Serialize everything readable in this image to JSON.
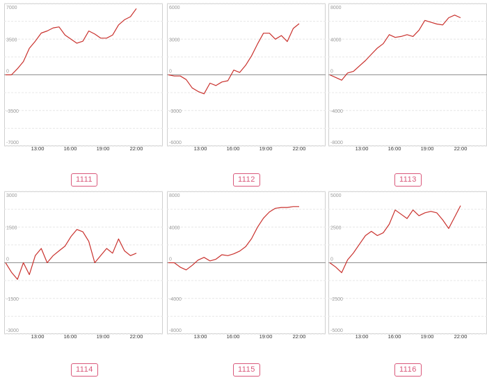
{
  "chart_data": [
    {
      "type": "line",
      "id": "1111",
      "yticks": [
        7000,
        3500,
        0,
        -3500,
        -7000
      ],
      "ylim": [
        -7000,
        7000
      ],
      "xticks": [
        "13:00",
        "16:00",
        "19:00",
        "22:00"
      ],
      "grid": true,
      "line_color": "#c9302c",
      "x": [
        "11:00",
        "11:30",
        "12:00",
        "12:30",
        "13:00",
        "13:30",
        "14:00",
        "14:30",
        "15:00",
        "15:30",
        "16:00",
        "16:30",
        "17:00",
        "17:30",
        "18:00",
        "18:30",
        "19:00",
        "19:30",
        "20:00",
        "20:30",
        "21:00",
        "21:30",
        "22:00"
      ],
      "values": [
        0,
        0,
        600,
        1300,
        2600,
        3300,
        4100,
        4300,
        4600,
        4700,
        3900,
        3500,
        3100,
        3300,
        4300,
        4000,
        3600,
        3600,
        3900,
        4900,
        5400,
        5700,
        6500
      ]
    },
    {
      "type": "line",
      "id": "1112",
      "yticks": [
        6000,
        3000,
        0,
        -3000,
        -6000
      ],
      "ylim": [
        -6000,
        6000
      ],
      "xticks": [
        "13:00",
        "16:00",
        "19:00",
        "22:00"
      ],
      "grid": true,
      "line_color": "#c9302c",
      "x": [
        "11:00",
        "11:30",
        "12:00",
        "12:30",
        "13:00",
        "13:30",
        "14:00",
        "14:30",
        "15:00",
        "15:30",
        "16:00",
        "16:30",
        "17:00",
        "17:30",
        "18:00",
        "18:30",
        "19:00",
        "19:30",
        "20:00",
        "20:30",
        "21:00",
        "21:30",
        "22:00"
      ],
      "values": [
        0,
        -100,
        -100,
        -400,
        -1100,
        -1400,
        -1600,
        -700,
        -900,
        -600,
        -500,
        400,
        200,
        800,
        1600,
        2600,
        3500,
        3500,
        3000,
        3300,
        2800,
        3900,
        4300
      ]
    },
    {
      "type": "line",
      "id": "1113",
      "yticks": [
        8000,
        4000,
        0,
        -4000,
        -8000
      ],
      "ylim": [
        -8000,
        8000
      ],
      "xticks": [
        "13:00",
        "16:00",
        "19:00",
        "22:00"
      ],
      "grid": true,
      "line_color": "#c9302c",
      "x": [
        "11:00",
        "11:30",
        "12:00",
        "12:30",
        "13:00",
        "13:30",
        "14:00",
        "14:30",
        "15:00",
        "15:30",
        "16:00",
        "16:30",
        "17:00",
        "17:30",
        "18:00",
        "18:30",
        "19:00",
        "19:30",
        "20:00",
        "20:30",
        "21:00",
        "21:30",
        "22:00"
      ],
      "values": [
        0,
        -300,
        -600,
        200,
        400,
        1000,
        1600,
        2300,
        3000,
        3500,
        4500,
        4200,
        4300,
        4500,
        4300,
        5000,
        6100,
        5900,
        5700,
        5600,
        6400,
        6700,
        6400
      ]
    },
    {
      "type": "line",
      "id": "1114",
      "yticks": [
        3000,
        1500,
        0,
        -1500,
        -3000
      ],
      "ylim": [
        -3000,
        3000
      ],
      "xticks": [
        "13:00",
        "16:00",
        "19:00",
        "22:00"
      ],
      "grid": true,
      "line_color": "#c9302c",
      "x": [
        "11:00",
        "11:30",
        "12:00",
        "12:30",
        "13:00",
        "13:30",
        "14:00",
        "14:30",
        "15:00",
        "15:30",
        "16:00",
        "16:30",
        "17:00",
        "17:30",
        "18:00",
        "18:30",
        "19:00",
        "19:30",
        "20:00",
        "20:30",
        "21:00",
        "21:30",
        "22:00"
      ],
      "values": [
        0,
        -400,
        -700,
        0,
        -500,
        300,
        600,
        0,
        300,
        500,
        700,
        1100,
        1400,
        1300,
        900,
        0,
        300,
        600,
        400,
        1000,
        500,
        300,
        400
      ]
    },
    {
      "type": "line",
      "id": "1115",
      "yticks": [
        8000,
        4000,
        0,
        -4000,
        -8000
      ],
      "ylim": [
        -8000,
        8000
      ],
      "xticks": [
        "13:00",
        "16:00",
        "19:00",
        "22:00"
      ],
      "grid": true,
      "line_color": "#c9302c",
      "x": [
        "11:00",
        "11:30",
        "12:00",
        "12:30",
        "13:00",
        "13:30",
        "14:00",
        "14:30",
        "15:00",
        "15:30",
        "16:00",
        "16:30",
        "17:00",
        "17:30",
        "18:00",
        "18:30",
        "19:00",
        "19:30",
        "20:00",
        "20:30",
        "21:00",
        "21:30",
        "22:00"
      ],
      "values": [
        0,
        0,
        -500,
        -800,
        -300,
        300,
        600,
        200,
        400,
        900,
        800,
        1000,
        1300,
        1800,
        2700,
        4000,
        5000,
        5700,
        6100,
        6200,
        6200,
        6300,
        6300
      ]
    },
    {
      "type": "line",
      "id": "1116",
      "yticks": [
        5000,
        2500,
        0,
        -2500,
        -5000
      ],
      "ylim": [
        -5000,
        5000
      ],
      "xticks": [
        "13:00",
        "16:00",
        "19:00",
        "22:00"
      ],
      "grid": true,
      "line_color": "#c9302c",
      "x": [
        "11:00",
        "11:30",
        "12:00",
        "12:30",
        "13:00",
        "13:30",
        "14:00",
        "14:30",
        "15:00",
        "15:30",
        "16:00",
        "16:30",
        "17:00",
        "17:30",
        "18:00",
        "18:30",
        "19:00",
        "19:30",
        "20:00",
        "20:30",
        "21:00",
        "21:30",
        "22:00"
      ],
      "values": [
        0,
        -300,
        -700,
        200,
        700,
        1300,
        1900,
        2200,
        1900,
        2100,
        2700,
        3700,
        3400,
        3100,
        3700,
        3300,
        3500,
        3600,
        3500,
        3000,
        2400,
        3200,
        4000
      ]
    }
  ],
  "theme": {
    "line_color": "#c9302c",
    "badge_color": "#d9577a",
    "grid_color": "#e6e6e6",
    "zero_color": "#8f8f8f"
  }
}
